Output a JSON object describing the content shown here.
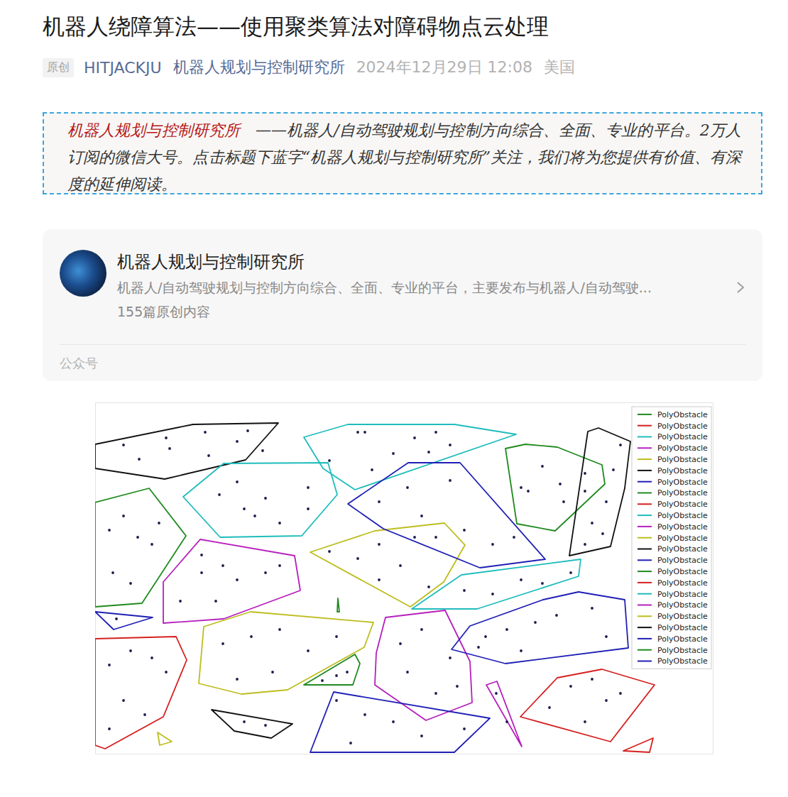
{
  "article": {
    "title": "机器人绕障算法——使用聚类算法对障碍物点云处理",
    "tag": "原创",
    "author": "HITJACKJU",
    "account": "机器人规划与控制研究所",
    "date": "2024年12月29日 12:08",
    "location": "美国"
  },
  "intro": {
    "highlight": "机器人规划与控制研究所",
    "text": "——机器人/自动驾驶规划与控制方向综合、全面、专业的平台。2万人订阅的微信大号。点击标题下蓝字“机器人规划与控制研究所”关注，我们将为您提供有价值、有深度的延伸阅读。"
  },
  "card": {
    "name": "机器人规划与控制研究所",
    "description": "机器人/自动驾驶规划与控制方向综合、全面、专业的平台，主要发布与机器人/自动驾驶...",
    "count": "155篇原创内容",
    "label": "公众号"
  },
  "chart_data": {
    "type": "scatter",
    "xlim": [
      0,
      870
    ],
    "ylim": [
      495,
      0
    ],
    "tick_labels": false,
    "legend": "upper right",
    "points": {
      "color": "#1b1b4b",
      "marker": "circle",
      "x": [
        40,
        62,
        100,
        105,
        155,
        160,
        200,
        215,
        236,
        370,
        380,
        420,
        450,
        480,
        500,
        470,
        330,
        390,
        175,
        200,
        210,
        240,
        260,
        300,
        300,
        225,
        400,
        440,
        460,
        500,
        520,
        560,
        590,
        480,
        600,
        610,
        630,
        655,
        660,
        690,
        690,
        700,
        720,
        730,
        740,
        715,
        690,
        20,
        40,
        60,
        80,
        25,
        50,
        90,
        150,
        150,
        180,
        200,
        240,
        260,
        120,
        170,
        330,
        370,
        400,
        430,
        450,
        400,
        470,
        520,
        560,
        600,
        630,
        670,
        550,
        580,
        620,
        650,
        700,
        720,
        600,
        540,
        30,
        20,
        50,
        80,
        40,
        70,
        20,
        100,
        180,
        220,
        260,
        300,
        340,
        250,
        200,
        340,
        355,
        320,
        430,
        460,
        500,
        440,
        480,
        510,
        340,
        380,
        420,
        460,
        520,
        360,
        210,
        240,
        565,
        580,
        640,
        670,
        700,
        720,
        740,
        690
      ],
      "y": [
        60,
        80,
        50,
        65,
        42,
        75,
        55,
        40,
        68,
        42,
        42,
        72,
        50,
        42,
        60,
        70,
        82,
        95,
        130,
        112,
        150,
        135,
        170,
        120,
        150,
        160,
        140,
        120,
        160,
        110,
        180,
        200,
        190,
        190,
        120,
        125,
        90,
        115,
        140,
        100,
        125,
        170,
        140,
        95,
        60,
        185,
        200,
        180,
        160,
        190,
        200,
        240,
        255,
        170,
        215,
        240,
        230,
        250,
        240,
        230,
        280,
        280,
        210,
        220,
        200,
        230,
        190,
        250,
        260,
        265,
        270,
        250,
        255,
        240,
        330,
        320,
        310,
        300,
        290,
        330,
        350,
        345,
        305,
        370,
        350,
        360,
        420,
        440,
        460,
        380,
        340,
        330,
        320,
        350,
        330,
        380,
        390,
        385,
        380,
        392,
        340,
        320,
        360,
        380,
        410,
        400,
        420,
        440,
        450,
        470,
        460,
        480,
        450,
        455,
        410,
        450,
        430,
        400,
        390,
        420,
        410,
        450
      ]
    },
    "series": [
      {
        "name": "PolyObstacle",
        "type": "polygon",
        "color": "#1f8a1f",
        "x": [
          578,
          606,
          651,
          714,
          718,
          648,
          594
        ],
        "y": [
          65,
          59,
          63,
          88,
          115,
          181,
          171
        ]
      },
      {
        "name": "PolyObstacle",
        "type": "polygon",
        "color": "#d62020",
        "x": [
          0,
          114,
          129,
          96,
          14,
          0
        ],
        "y": [
          333,
          330,
          363,
          443,
          488,
          483
        ]
      },
      {
        "name": "PolyObstacle",
        "type": "polygon",
        "color": "#1fbcbc",
        "x": [
          356,
          506,
          593,
          366,
          321,
          294
        ],
        "y": [
          31,
          31,
          45,
          123,
          93,
          49
        ]
      },
      {
        "name": "PolyObstacle",
        "type": "polygon",
        "color": "#b61fbd",
        "x": [
          96,
          148,
          281,
          289,
          181,
          96
        ],
        "y": [
          253,
          193,
          216,
          265,
          305,
          311
        ]
      },
      {
        "name": "PolyObstacle",
        "type": "polygon",
        "color": "#bdbd1f",
        "x": [
          303,
          394,
          492,
          521,
          491,
          444
        ],
        "y": [
          211,
          181,
          170,
          201,
          253,
          288
        ]
      },
      {
        "name": "PolyObstacle",
        "type": "polygon",
        "color": "#111111",
        "x": [
          0,
          138,
          258,
          212,
          98,
          0
        ],
        "y": [
          59,
          31,
          29,
          81,
          108,
          93
        ]
      },
      {
        "name": "PolyObstacle",
        "type": "polygon",
        "color": "#1f1fb5",
        "x": [
          356,
          441,
          514,
          634,
          542,
          406
        ],
        "y": [
          143,
          85,
          85,
          221,
          233,
          178
        ]
      },
      {
        "name": "PolyObstacle",
        "type": "polygon",
        "color": "#1f8a1f",
        "x": [
          0,
          76,
          128,
          66,
          0
        ],
        "y": [
          141,
          121,
          188,
          283,
          288
        ]
      },
      {
        "name": "PolyObstacle",
        "type": "polygon",
        "color": "#d62020",
        "x": [
          599,
          651,
          714,
          788,
          726
        ],
        "y": [
          443,
          388,
          376,
          398,
          478
        ]
      },
      {
        "name": "PolyObstacle",
        "type": "polygon",
        "color": "#1fbcbc",
        "x": [
          124,
          181,
          328,
          341,
          291,
          176
        ],
        "y": [
          133,
          86,
          85,
          130,
          188,
          190
        ]
      },
      {
        "name": "PolyObstacle",
        "type": "polygon",
        "color": "#b61fbd",
        "x": [
          409,
          493,
          528,
          531,
          466,
          394,
          396
        ],
        "y": [
          303,
          293,
          365,
          423,
          448,
          398,
          353
        ]
      },
      {
        "name": "PolyObstacle",
        "type": "polygon",
        "color": "#bdbd1f",
        "x": [
          153,
          219,
          392,
          379,
          271,
          206,
          146
        ],
        "y": [
          316,
          295,
          310,
          345,
          405,
          411,
          396
        ]
      },
      {
        "name": "PolyObstacle",
        "type": "polygon",
        "color": "#111111",
        "x": [
          694,
          709,
          754,
          746,
          726,
          668
        ],
        "y": [
          41,
          36,
          55,
          121,
          203,
          216
        ]
      },
      {
        "name": "PolyObstacle",
        "type": "polygon",
        "color": "#1f1fb5",
        "x": [
          502,
          528,
          631,
          681,
          746,
          751,
          578
        ],
        "y": [
          348,
          315,
          278,
          267,
          278,
          346,
          368
        ]
      },
      {
        "name": "PolyObstacle",
        "type": "polygon",
        "color": "#1f8a1f",
        "x": [
          342,
          344,
          341
        ],
        "y": [
          276,
          295,
          295
        ]
      },
      {
        "name": "PolyObstacle",
        "type": "polygon",
        "color": "#d62020",
        "x": [
          744,
          786,
          781
        ],
        "y": [
          491,
          473,
          493
        ]
      },
      {
        "name": "PolyObstacle",
        "type": "polygon",
        "color": "#1fbcbc",
        "x": [
          446,
          516,
          684,
          681,
          538
        ],
        "y": [
          291,
          243,
          221,
          245,
          291
        ]
      },
      {
        "name": "PolyObstacle",
        "type": "polygon",
        "color": "#b61fbd",
        "x": [
          551,
          566,
          601
        ],
        "y": [
          398,
          393,
          485
        ]
      },
      {
        "name": "PolyObstacle",
        "type": "polygon",
        "color": "#bdbd1f",
        "x": [
          88,
          108,
          91
        ],
        "y": [
          465,
          478,
          483
        ]
      },
      {
        "name": "PolyObstacle",
        "type": "polygon",
        "color": "#111111",
        "x": [
          164,
          278,
          248,
          196
        ],
        "y": [
          433,
          453,
          473,
          463
        ]
      },
      {
        "name": "PolyObstacle",
        "type": "polygon",
        "color": "#1f1fb5",
        "x": [
          0,
          81,
          26
        ],
        "y": [
          295,
          303,
          320
        ]
      },
      {
        "name": "PolyObstacle",
        "type": "polygon",
        "color": "#1f8a1f",
        "x": [
          294,
          366,
          373,
          363
        ],
        "y": [
          398,
          355,
          368,
          398
        ]
      },
      {
        "name": "PolyObstacle",
        "type": "polygon",
        "color": "#1f1fb5",
        "x": [
          303,
          336,
          556,
          506
        ],
        "y": [
          493,
          408,
          445,
          493
        ]
      }
    ]
  }
}
